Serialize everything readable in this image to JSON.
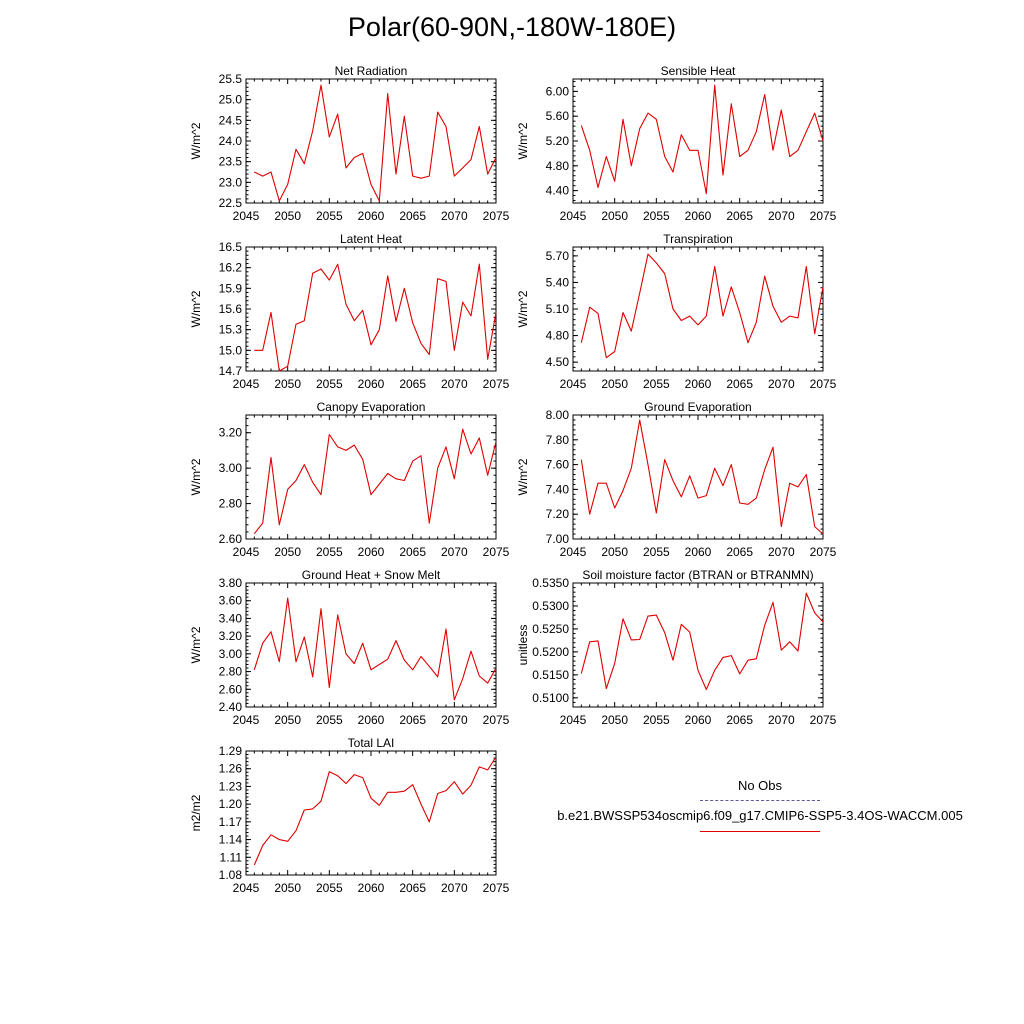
{
  "title": "Polar(60-90N,-180W-180E)",
  "legend": {
    "obs_label": "No Obs",
    "model_label": "b.e21.BWSSP534oscmip6.f09_g17.CMIP6-SSP5-3.4OS-WACCM.005",
    "obs_color": "#5a5a9a",
    "model_color": "#e00000"
  },
  "chart_data": [
    {
      "type": "line",
      "title": "Net Radiation",
      "ylabel": "W/m^2",
      "xlim": [
        2045,
        2075
      ],
      "ylim": [
        22.5,
        25.5
      ],
      "xticks": [
        2045,
        2050,
        2055,
        2060,
        2065,
        2070,
        2075
      ],
      "yticks": [
        22.5,
        23.0,
        23.5,
        24.0,
        24.5,
        25.0,
        25.5
      ],
      "ytick_labels": [
        "22.5",
        "23.0",
        "23.5",
        "24.0",
        "24.5",
        "25.0",
        "25.5"
      ],
      "x": [
        2046,
        2047,
        2048,
        2049,
        2050,
        2051,
        2052,
        2053,
        2054,
        2055,
        2056,
        2057,
        2058,
        2059,
        2060,
        2061,
        2062,
        2063,
        2064,
        2065,
        2066,
        2067,
        2068,
        2069,
        2070,
        2071,
        2072,
        2073,
        2074,
        2075
      ],
      "values": [
        23.25,
        23.15,
        23.25,
        22.55,
        22.95,
        23.8,
        23.45,
        24.25,
        25.35,
        24.1,
        24.65,
        23.35,
        23.6,
        23.7,
        22.95,
        22.55,
        25.15,
        23.2,
        24.6,
        23.15,
        23.1,
        23.15,
        24.7,
        24.35,
        23.15,
        23.35,
        23.55,
        24.35,
        23.2,
        23.6
      ]
    },
    {
      "type": "line",
      "title": "Sensible Heat",
      "ylabel": "W/m^2",
      "xlim": [
        2045,
        2075
      ],
      "ylim": [
        4.2,
        6.2
      ],
      "xticks": [
        2045,
        2050,
        2055,
        2060,
        2065,
        2070,
        2075
      ],
      "yticks": [
        4.4,
        4.8,
        5.2,
        5.6,
        6.0
      ],
      "ytick_labels": [
        "4.40",
        "4.80",
        "5.20",
        "5.60",
        "6.00"
      ],
      "x": [
        2046,
        2047,
        2048,
        2049,
        2050,
        2051,
        2052,
        2053,
        2054,
        2055,
        2056,
        2057,
        2058,
        2059,
        2060,
        2061,
        2062,
        2063,
        2064,
        2065,
        2066,
        2067,
        2068,
        2069,
        2070,
        2071,
        2072,
        2073,
        2074,
        2075
      ],
      "values": [
        5.45,
        5.05,
        4.45,
        4.95,
        4.55,
        5.55,
        4.8,
        5.4,
        5.65,
        5.55,
        4.95,
        4.7,
        5.3,
        5.05,
        5.05,
        4.35,
        6.1,
        4.65,
        5.8,
        4.95,
        5.05,
        5.35,
        5.95,
        5.05,
        5.7,
        4.95,
        5.05,
        5.35,
        5.65,
        5.2
      ]
    },
    {
      "type": "line",
      "title": "Latent Heat",
      "ylabel": "W/m^2",
      "xlim": [
        2045,
        2075
      ],
      "ylim": [
        14.7,
        16.5
      ],
      "xticks": [
        2045,
        2050,
        2055,
        2060,
        2065,
        2070,
        2075
      ],
      "yticks": [
        14.7,
        15.0,
        15.3,
        15.6,
        15.9,
        16.2,
        16.5
      ],
      "ytick_labels": [
        "14.7",
        "15.0",
        "15.3",
        "15.6",
        "15.9",
        "16.2",
        "16.5"
      ],
      "x": [
        2046,
        2047,
        2048,
        2049,
        2050,
        2051,
        2052,
        2053,
        2054,
        2055,
        2056,
        2057,
        2058,
        2059,
        2060,
        2061,
        2062,
        2063,
        2064,
        2065,
        2066,
        2067,
        2068,
        2069,
        2070,
        2071,
        2072,
        2073,
        2074,
        2075
      ],
      "values": [
        15.0,
        15.0,
        15.55,
        14.7,
        14.77,
        15.38,
        15.43,
        16.12,
        16.18,
        16.02,
        16.25,
        15.67,
        15.43,
        15.58,
        15.08,
        15.3,
        16.08,
        15.42,
        15.9,
        15.4,
        15.1,
        14.94,
        16.04,
        16.0,
        15.0,
        15.7,
        15.5,
        16.25,
        14.87,
        15.55
      ]
    },
    {
      "type": "line",
      "title": "Transpiration",
      "ylabel": "W/m^2",
      "xlim": [
        2045,
        2075
      ],
      "ylim": [
        4.4,
        5.8
      ],
      "xticks": [
        2045,
        2050,
        2055,
        2060,
        2065,
        2070,
        2075
      ],
      "yticks": [
        4.5,
        4.8,
        5.1,
        5.4,
        5.7
      ],
      "ytick_labels": [
        "4.50",
        "4.80",
        "5.10",
        "5.40",
        "5.70"
      ],
      "x": [
        2046,
        2047,
        2048,
        2049,
        2050,
        2051,
        2052,
        2053,
        2054,
        2055,
        2056,
        2057,
        2058,
        2059,
        2060,
        2061,
        2062,
        2063,
        2064,
        2065,
        2066,
        2067,
        2068,
        2069,
        2070,
        2071,
        2072,
        2073,
        2074,
        2075
      ],
      "values": [
        4.72,
        5.12,
        5.05,
        4.55,
        4.62,
        5.06,
        4.85,
        5.28,
        5.72,
        5.62,
        5.5,
        5.1,
        4.97,
        5.02,
        4.92,
        5.02,
        5.58,
        5.02,
        5.35,
        5.06,
        4.72,
        4.95,
        5.47,
        5.13,
        4.95,
        5.02,
        5.0,
        5.58,
        4.82,
        5.35
      ]
    },
    {
      "type": "line",
      "title": "Canopy Evaporation",
      "ylabel": "W/m^2",
      "xlim": [
        2045,
        2075
      ],
      "ylim": [
        2.6,
        3.3
      ],
      "xticks": [
        2045,
        2050,
        2055,
        2060,
        2065,
        2070,
        2075
      ],
      "yticks": [
        2.6,
        2.8,
        3.0,
        3.2
      ],
      "ytick_labels": [
        "2.60",
        "2.80",
        "3.00",
        "3.20"
      ],
      "x": [
        2046,
        2047,
        2048,
        2049,
        2050,
        2051,
        2052,
        2053,
        2054,
        2055,
        2056,
        2057,
        2058,
        2059,
        2060,
        2061,
        2062,
        2063,
        2064,
        2065,
        2066,
        2067,
        2068,
        2069,
        2070,
        2071,
        2072,
        2073,
        2074,
        2075
      ],
      "values": [
        2.63,
        2.69,
        3.06,
        2.68,
        2.88,
        2.93,
        3.02,
        2.92,
        2.85,
        3.19,
        3.12,
        3.1,
        3.13,
        3.05,
        2.85,
        2.91,
        2.97,
        2.94,
        2.93,
        3.04,
        3.07,
        2.69,
        3.0,
        3.12,
        2.94,
        3.22,
        3.08,
        3.17,
        2.96,
        3.15
      ]
    },
    {
      "type": "line",
      "title": "Ground Evaporation",
      "ylabel": "W/m^2",
      "xlim": [
        2045,
        2075
      ],
      "ylim": [
        7.0,
        8.0
      ],
      "xticks": [
        2045,
        2050,
        2055,
        2060,
        2065,
        2070,
        2075
      ],
      "yticks": [
        7.0,
        7.2,
        7.4,
        7.6,
        7.8,
        8.0
      ],
      "ytick_labels": [
        "7.00",
        "7.20",
        "7.40",
        "7.60",
        "7.80",
        "8.00"
      ],
      "x": [
        2046,
        2047,
        2048,
        2049,
        2050,
        2051,
        2052,
        2053,
        2054,
        2055,
        2056,
        2057,
        2058,
        2059,
        2060,
        2061,
        2062,
        2063,
        2064,
        2065,
        2066,
        2067,
        2068,
        2069,
        2070,
        2071,
        2072,
        2073,
        2074,
        2075
      ],
      "values": [
        7.64,
        7.2,
        7.45,
        7.45,
        7.25,
        7.39,
        7.57,
        7.96,
        7.6,
        7.21,
        7.64,
        7.47,
        7.34,
        7.51,
        7.33,
        7.35,
        7.57,
        7.43,
        7.6,
        7.29,
        7.28,
        7.33,
        7.56,
        7.74,
        7.1,
        7.45,
        7.42,
        7.52,
        7.1,
        7.04
      ]
    },
    {
      "type": "line",
      "title": "Ground Heat + Snow Melt",
      "ylabel": "W/m^2",
      "xlim": [
        2045,
        2075
      ],
      "ylim": [
        2.4,
        3.8
      ],
      "xticks": [
        2045,
        2050,
        2055,
        2060,
        2065,
        2070,
        2075
      ],
      "yticks": [
        2.4,
        2.6,
        2.8,
        3.0,
        3.2,
        3.4,
        3.6,
        3.8
      ],
      "ytick_labels": [
        "2.40",
        "2.60",
        "2.80",
        "3.00",
        "3.20",
        "3.40",
        "3.60",
        "3.80"
      ],
      "x": [
        2046,
        2047,
        2048,
        2049,
        2050,
        2051,
        2052,
        2053,
        2054,
        2055,
        2056,
        2057,
        2058,
        2059,
        2060,
        2061,
        2062,
        2063,
        2064,
        2065,
        2066,
        2067,
        2068,
        2069,
        2070,
        2071,
        2072,
        2073,
        2074,
        2075
      ],
      "values": [
        2.82,
        3.12,
        3.25,
        2.91,
        3.63,
        2.91,
        3.19,
        2.74,
        3.51,
        2.62,
        3.44,
        3.0,
        2.89,
        3.12,
        2.82,
        2.88,
        2.94,
        3.15,
        2.93,
        2.82,
        2.97,
        2.86,
        2.74,
        3.28,
        2.48,
        2.72,
        3.03,
        2.75,
        2.67,
        2.84
      ]
    },
    {
      "type": "line",
      "title": "Soil moisture factor (BTRAN or BTRANMN)",
      "ylabel": "unitless",
      "xlim": [
        2045,
        2075
      ],
      "ylim": [
        0.508,
        0.535
      ],
      "xticks": [
        2045,
        2050,
        2055,
        2060,
        2065,
        2070,
        2075
      ],
      "yticks": [
        0.51,
        0.515,
        0.52,
        0.525,
        0.53,
        0.535
      ],
      "ytick_labels": [
        "0.5100",
        "0.5150",
        "0.5200",
        "0.5250",
        "0.5300",
        "0.5350"
      ],
      "x": [
        2046,
        2047,
        2048,
        2049,
        2050,
        2051,
        2052,
        2053,
        2054,
        2055,
        2056,
        2057,
        2058,
        2059,
        2060,
        2061,
        2062,
        2063,
        2064,
        2065,
        2066,
        2067,
        2068,
        2069,
        2070,
        2071,
        2072,
        2073,
        2074,
        2075
      ],
      "values": [
        0.5153,
        0.5222,
        0.5224,
        0.512,
        0.5175,
        0.5272,
        0.5226,
        0.5227,
        0.5278,
        0.528,
        0.5242,
        0.5182,
        0.526,
        0.5243,
        0.516,
        0.5118,
        0.516,
        0.5188,
        0.5192,
        0.5152,
        0.5182,
        0.5185,
        0.5258,
        0.5308,
        0.5204,
        0.5222,
        0.5202,
        0.5328,
        0.5285,
        0.5265
      ]
    },
    {
      "type": "line",
      "title": "Total LAI",
      "ylabel": "m2/m2",
      "xlim": [
        2045,
        2075
      ],
      "ylim": [
        1.08,
        1.29
      ],
      "xticks": [
        2045,
        2050,
        2055,
        2060,
        2065,
        2070,
        2075
      ],
      "yticks": [
        1.08,
        1.11,
        1.14,
        1.17,
        1.2,
        1.23,
        1.26,
        1.29
      ],
      "ytick_labels": [
        "1.08",
        "1.11",
        "1.14",
        "1.17",
        "1.20",
        "1.23",
        "1.26",
        "1.29"
      ],
      "x": [
        2046,
        2047,
        2048,
        2049,
        2050,
        2051,
        2052,
        2053,
        2054,
        2055,
        2056,
        2057,
        2058,
        2059,
        2060,
        2061,
        2062,
        2063,
        2064,
        2065,
        2066,
        2067,
        2068,
        2069,
        2070,
        2071,
        2072,
        2073,
        2074,
        2075
      ],
      "values": [
        1.097,
        1.13,
        1.148,
        1.14,
        1.137,
        1.155,
        1.19,
        1.192,
        1.205,
        1.255,
        1.248,
        1.235,
        1.25,
        1.245,
        1.21,
        1.198,
        1.22,
        1.22,
        1.222,
        1.233,
        1.2,
        1.17,
        1.218,
        1.223,
        1.238,
        1.217,
        1.232,
        1.263,
        1.258,
        1.28
      ]
    }
  ]
}
